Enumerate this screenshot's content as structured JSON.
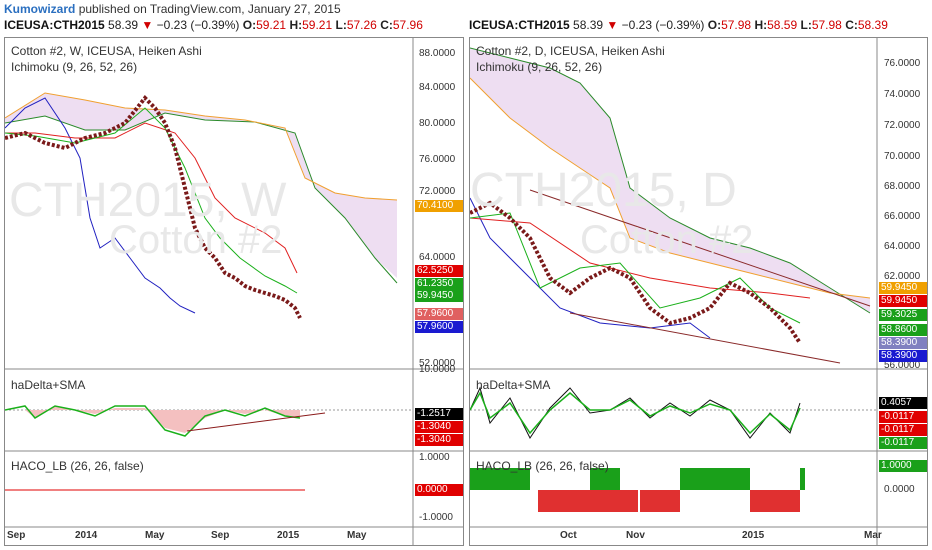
{
  "header": {
    "author": "Kumowizard",
    "published": "published on TradingView.com, January 27, 2015"
  },
  "left": {
    "quote": {
      "symbol": "ICEUSA:CTH2015",
      "last": "58.39",
      "change": "−0.23 (−0.39%)",
      "o_label": "O:",
      "o": "59.21",
      "h_label": "H:",
      "h": "59.21",
      "l_label": "L:",
      "l": "57.26",
      "c_label": "C:",
      "c": "57.96"
    },
    "title": "Cotton #2, W, ICEUSA, Heiken Ashi",
    "indicator": "Ichimoku (9, 26, 52, 26)",
    "watermark1": "CTH2015, W",
    "watermark2": "Cotton #2",
    "price_ticks": [
      "88.0000",
      "84.0000",
      "80.0000",
      "76.0000",
      "72.0000",
      "64.0000",
      "52.0000"
    ],
    "badges": [
      {
        "text": "70.4100",
        "color": "#f0a000"
      },
      {
        "text": "62.5250",
        "color": "#e00000"
      },
      {
        "text": "61.2350",
        "color": "#1aa01a"
      },
      {
        "text": "59.9450",
        "color": "#1aa01a"
      },
      {
        "text": "57.9600",
        "color": "#e06060"
      },
      {
        "text": "57.9600",
        "color": "#1a1ad0"
      }
    ],
    "ha_title": "haDelta+SMA",
    "ha_ticks": [
      "10.0000"
    ],
    "ha_badges": [
      {
        "text": "-1.2517",
        "color": "#000000"
      },
      {
        "text": "-1.3040",
        "color": "#e00000"
      },
      {
        "text": "-1.3040",
        "color": "#e00000"
      }
    ],
    "haco_title": "HACO_LB (26, 26, false)",
    "haco_ticks": [
      "1.0000",
      "-1.0000"
    ],
    "haco_badge": {
      "text": "0.0000",
      "color": "#e00000"
    },
    "x_ticks": [
      "Sep",
      "2014",
      "May",
      "Sep",
      "2015",
      "May"
    ]
  },
  "right": {
    "quote": {
      "symbol": "ICEUSA:CTH2015",
      "last": "58.39",
      "change": "−0.23 (−0.39%)",
      "o_label": "O:",
      "o": "57.98",
      "h_label": "H:",
      "h": "58.59",
      "l_label": "L:",
      "l": "57.98",
      "c_label": "C:",
      "c": "58.39"
    },
    "title": "Cotton #2, D, ICEUSA, Heiken Ashi",
    "indicator": "Ichimoku (9, 26, 52, 26)",
    "watermark1": "CTH2015, D",
    "watermark2": "Cotton #2",
    "price_ticks": [
      "76.0000",
      "74.0000",
      "72.0000",
      "70.0000",
      "68.0000",
      "66.0000",
      "64.0000",
      "62.0000",
      "56.0000"
    ],
    "badges": [
      {
        "text": "59.9450",
        "color": "#f0a000"
      },
      {
        "text": "59.9450",
        "color": "#e00000"
      },
      {
        "text": "59.3025",
        "color": "#1aa01a"
      },
      {
        "text": "58.8600",
        "color": "#1aa01a"
      },
      {
        "text": "58.3900",
        "color": "#8080c0"
      },
      {
        "text": "58.3900",
        "color": "#1a1ad0"
      }
    ],
    "ha_title": "haDelta+SMA",
    "ha_badges": [
      {
        "text": "0.4057",
        "color": "#000000"
      },
      {
        "text": "-0.0117",
        "color": "#e00000"
      },
      {
        "text": "-0.0117",
        "color": "#e00000"
      },
      {
        "text": "-0.0117",
        "color": "#1aa01a"
      }
    ],
    "haco_title": "HACO_LB (26, 26, false)",
    "haco_ticks": [
      "0.0000"
    ],
    "haco_badge": {
      "text": "1.0000",
      "color": "#1aa01a"
    },
    "x_ticks": [
      "Oct",
      "Nov",
      "2015",
      "Mar"
    ]
  }
}
